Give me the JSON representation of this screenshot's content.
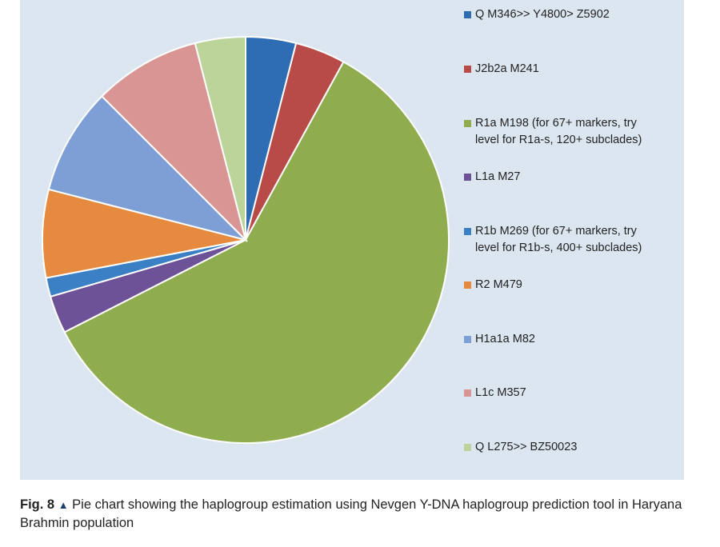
{
  "chart_data": {
    "type": "pie",
    "title": "",
    "legend_position": "right",
    "slices": [
      {
        "label": "Q M346>> Y4800> Z5902",
        "value": 4.0,
        "color": "#2e6db4"
      },
      {
        "label": "J2b2a M241",
        "value": 4.0,
        "color": "#b84a47"
      },
      {
        "label": "R1a M198 (for 67+ markers, try\nlevel for R1a-s, 120+ subclades)",
        "value": 59.5,
        "color": "#8fad4f"
      },
      {
        "label": "L1a M27",
        "value": 3.0,
        "color": "#6d5297"
      },
      {
        "label": "R1b M269 (for 67+ markers, try\nlevel for R1b-s, 400+ subclades)",
        "value": 1.5,
        "color": "#3b80c4"
      },
      {
        "label": "R2 M479",
        "value": 7.0,
        "color": "#e58a3f"
      },
      {
        "label": "H1a1a M82",
        "value": 8.5,
        "color": "#7e9fd6"
      },
      {
        "label": "L1c M357",
        "value": 8.5,
        "color": "#d99594"
      },
      {
        "label": "Q L275>> BZ50023",
        "value": 4.0,
        "color": "#bcd49a"
      }
    ]
  },
  "caption": {
    "fig_label": "Fig. 8",
    "triangle": "▲",
    "text": "Pie chart showing the haplogroup estimation using Nevgen Y-DNA haplogroup prediction tool in Haryana Brahmin population"
  }
}
